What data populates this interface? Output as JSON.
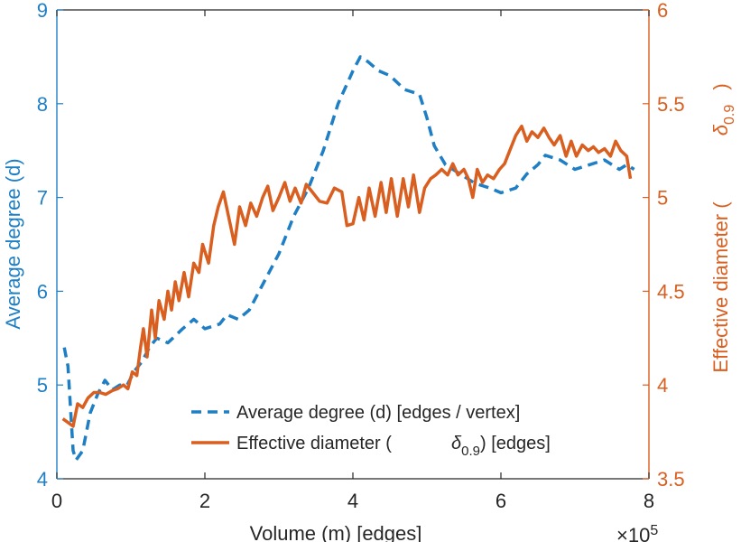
{
  "chart_data": {
    "type": "line",
    "xlabel": "Volume (m) [edges]",
    "x_exponent_base": "×10",
    "x_exponent_power": "5",
    "xlim": [
      0,
      8
    ],
    "x_ticks": [
      0,
      2,
      4,
      6,
      8
    ],
    "y_left": {
      "label": "Average degree (d)",
      "lim": [
        4,
        9
      ],
      "ticks": [
        4,
        5,
        6,
        7,
        8,
        9
      ],
      "color": "#1f7fc4"
    },
    "y_right": {
      "label_main": "Effective diameter (",
      "label_symbol": "δ",
      "label_subscript": "0.9",
      "label_close": ")",
      "lim": [
        3.5,
        6
      ],
      "ticks": [
        3.5,
        4,
        4.5,
        5,
        5.5,
        6
      ],
      "tick_labels": [
        "3.5",
        "4",
        "4.5",
        "5",
        "5.5",
        "6"
      ],
      "color": "#d95f20"
    },
    "legend": {
      "placement": "bottom-center",
      "entries": [
        {
          "text": "Average degree (d) [edges / vertex]",
          "style": "dashed",
          "color": "#1f7fc4"
        },
        {
          "text_before": "Effective diameter (",
          "symbol": "δ",
          "subscript": "0.9",
          "text_after": ") [edges]",
          "style": "solid",
          "color": "#d95f20"
        }
      ]
    },
    "series": [
      {
        "axis": "left",
        "style": "dashed",
        "color": "#1f7fc4",
        "points": [
          [
            0.1,
            5.4
          ],
          [
            0.15,
            5.2
          ],
          [
            0.22,
            4.3
          ],
          [
            0.26,
            4.2
          ],
          [
            0.35,
            4.3
          ],
          [
            0.45,
            4.7
          ],
          [
            0.55,
            4.9
          ],
          [
            0.65,
            5.05
          ],
          [
            0.75,
            4.95
          ],
          [
            0.85,
            5.0
          ],
          [
            0.95,
            5.0
          ],
          [
            1.05,
            5.15
          ],
          [
            1.15,
            5.25
          ],
          [
            1.25,
            5.4
          ],
          [
            1.35,
            5.5
          ],
          [
            1.5,
            5.45
          ],
          [
            1.7,
            5.6
          ],
          [
            1.85,
            5.7
          ],
          [
            2.0,
            5.6
          ],
          [
            2.2,
            5.65
          ],
          [
            2.3,
            5.75
          ],
          [
            2.45,
            5.7
          ],
          [
            2.6,
            5.8
          ],
          [
            2.8,
            6.1
          ],
          [
            3.0,
            6.4
          ],
          [
            3.2,
            6.8
          ],
          [
            3.4,
            7.1
          ],
          [
            3.6,
            7.5
          ],
          [
            3.8,
            8.0
          ],
          [
            4.0,
            8.35
          ],
          [
            4.1,
            8.5
          ],
          [
            4.2,
            8.45
          ],
          [
            4.35,
            8.35
          ],
          [
            4.5,
            8.3
          ],
          [
            4.7,
            8.15
          ],
          [
            4.9,
            8.1
          ],
          [
            5.0,
            7.85
          ],
          [
            5.1,
            7.55
          ],
          [
            5.25,
            7.35
          ],
          [
            5.45,
            7.25
          ],
          [
            5.65,
            7.15
          ],
          [
            5.85,
            7.1
          ],
          [
            6.0,
            7.05
          ],
          [
            6.2,
            7.1
          ],
          [
            6.35,
            7.25
          ],
          [
            6.5,
            7.35
          ],
          [
            6.6,
            7.45
          ],
          [
            6.8,
            7.4
          ],
          [
            7.0,
            7.3
          ],
          [
            7.2,
            7.35
          ],
          [
            7.4,
            7.4
          ],
          [
            7.6,
            7.3
          ],
          [
            7.7,
            7.35
          ],
          [
            7.8,
            7.3
          ]
        ]
      },
      {
        "axis": "right",
        "style": "solid",
        "color": "#d95f20",
        "points": [
          [
            0.08,
            3.82
          ],
          [
            0.15,
            3.8
          ],
          [
            0.22,
            3.78
          ],
          [
            0.28,
            3.9
          ],
          [
            0.35,
            3.88
          ],
          [
            0.42,
            3.93
          ],
          [
            0.5,
            3.96
          ],
          [
            0.58,
            3.96
          ],
          [
            0.66,
            3.95
          ],
          [
            0.75,
            3.97
          ],
          [
            0.82,
            3.98
          ],
          [
            0.9,
            4.0
          ],
          [
            0.96,
            3.98
          ],
          [
            1.02,
            4.07
          ],
          [
            1.08,
            4.05
          ],
          [
            1.13,
            4.2
          ],
          [
            1.17,
            4.3
          ],
          [
            1.22,
            4.15
          ],
          [
            1.28,
            4.4
          ],
          [
            1.33,
            4.25
          ],
          [
            1.38,
            4.45
          ],
          [
            1.45,
            4.35
          ],
          [
            1.5,
            4.5
          ],
          [
            1.55,
            4.4
          ],
          [
            1.6,
            4.55
          ],
          [
            1.65,
            4.45
          ],
          [
            1.72,
            4.6
          ],
          [
            1.78,
            4.47
          ],
          [
            1.85,
            4.65
          ],
          [
            1.92,
            4.6
          ],
          [
            1.97,
            4.75
          ],
          [
            2.05,
            4.65
          ],
          [
            2.12,
            4.85
          ],
          [
            2.18,
            4.95
          ],
          [
            2.25,
            5.03
          ],
          [
            2.32,
            4.9
          ],
          [
            2.4,
            4.75
          ],
          [
            2.47,
            4.95
          ],
          [
            2.55,
            4.85
          ],
          [
            2.62,
            4.97
          ],
          [
            2.7,
            4.9
          ],
          [
            2.78,
            5.0
          ],
          [
            2.85,
            5.06
          ],
          [
            2.92,
            4.93
          ],
          [
            3.0,
            5.0
          ],
          [
            3.08,
            5.08
          ],
          [
            3.15,
            4.98
          ],
          [
            3.22,
            5.05
          ],
          [
            3.3,
            4.97
          ],
          [
            3.37,
            5.07
          ],
          [
            3.45,
            5.03
          ],
          [
            3.55,
            4.98
          ],
          [
            3.65,
            4.97
          ],
          [
            3.75,
            5.05
          ],
          [
            3.85,
            5.03
          ],
          [
            3.92,
            4.85
          ],
          [
            4.0,
            4.86
          ],
          [
            4.08,
            5.0
          ],
          [
            4.15,
            4.88
          ],
          [
            4.22,
            5.05
          ],
          [
            4.3,
            4.9
          ],
          [
            4.38,
            5.08
          ],
          [
            4.45,
            4.92
          ],
          [
            4.52,
            5.1
          ],
          [
            4.6,
            4.9
          ],
          [
            4.68,
            5.1
          ],
          [
            4.75,
            4.95
          ],
          [
            4.82,
            5.12
          ],
          [
            4.9,
            4.92
          ],
          [
            4.97,
            5.05
          ],
          [
            5.05,
            5.1
          ],
          [
            5.12,
            5.12
          ],
          [
            5.2,
            5.15
          ],
          [
            5.28,
            5.12
          ],
          [
            5.35,
            5.18
          ],
          [
            5.42,
            5.12
          ],
          [
            5.5,
            5.15
          ],
          [
            5.56,
            5.1
          ],
          [
            5.62,
            5.0
          ],
          [
            5.68,
            5.15
          ],
          [
            5.75,
            5.08
          ],
          [
            5.82,
            5.12
          ],
          [
            5.9,
            5.1
          ],
          [
            5.98,
            5.15
          ],
          [
            6.05,
            5.18
          ],
          [
            6.12,
            5.25
          ],
          [
            6.2,
            5.33
          ],
          [
            6.28,
            5.38
          ],
          [
            6.35,
            5.3
          ],
          [
            6.42,
            5.35
          ],
          [
            6.5,
            5.32
          ],
          [
            6.58,
            5.37
          ],
          [
            6.65,
            5.32
          ],
          [
            6.72,
            5.28
          ],
          [
            6.8,
            5.33
          ],
          [
            6.88,
            5.22
          ],
          [
            6.95,
            5.3
          ],
          [
            7.02,
            5.22
          ],
          [
            7.1,
            5.28
          ],
          [
            7.18,
            5.25
          ],
          [
            7.25,
            5.27
          ],
          [
            7.32,
            5.24
          ],
          [
            7.4,
            5.26
          ],
          [
            7.48,
            5.22
          ],
          [
            7.55,
            5.3
          ],
          [
            7.62,
            5.25
          ],
          [
            7.7,
            5.22
          ],
          [
            7.75,
            5.1
          ]
        ]
      }
    ]
  }
}
